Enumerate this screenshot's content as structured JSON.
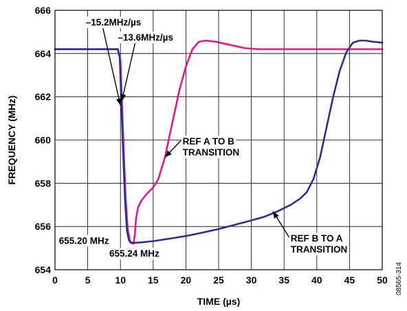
{
  "chart_data": {
    "type": "line",
    "xlabel": "TIME (µs)",
    "ylabel": "FREQUENCY (MHz)",
    "xlim": [
      0,
      50
    ],
    "ylim": [
      654,
      666
    ],
    "x_ticks": [
      "0",
      "5",
      "10",
      "15",
      "20",
      "25",
      "30",
      "35",
      "40",
      "45",
      "50"
    ],
    "y_ticks": [
      "654",
      "656",
      "658",
      "660",
      "662",
      "664",
      "666"
    ],
    "grid": true,
    "legend": "none",
    "figure_id": "08565-314",
    "series": [
      {
        "color": "#e0188c",
        "points": [
          [
            0,
            664.2
          ],
          [
            9.6,
            664.2
          ],
          [
            10.0,
            663.7
          ],
          [
            10.2,
            662.0
          ],
          [
            10.5,
            659.5
          ],
          [
            10.8,
            657.3
          ],
          [
            11.1,
            655.9
          ],
          [
            11.5,
            655.25
          ],
          [
            12.0,
            655.2
          ],
          [
            12.2,
            655.6
          ],
          [
            12.4,
            656.4
          ],
          [
            12.7,
            656.9
          ],
          [
            13.2,
            657.2
          ],
          [
            14.0,
            657.5
          ],
          [
            15.0,
            657.8
          ],
          [
            15.8,
            658.2
          ],
          [
            16.8,
            659.2
          ],
          [
            18.0,
            660.9
          ],
          [
            19.0,
            662.3
          ],
          [
            20.0,
            663.4
          ],
          [
            21.0,
            664.2
          ],
          [
            22.0,
            664.55
          ],
          [
            23.0,
            664.6
          ],
          [
            24.5,
            664.55
          ],
          [
            26.0,
            664.45
          ],
          [
            27.5,
            664.35
          ],
          [
            29.0,
            664.25
          ],
          [
            31.0,
            664.2
          ],
          [
            50,
            664.2
          ]
        ]
      },
      {
        "color": "#2b2f8f",
        "points": [
          [
            0,
            664.2
          ],
          [
            9.6,
            664.2
          ],
          [
            9.9,
            663.8
          ],
          [
            10.1,
            662.0
          ],
          [
            10.4,
            659.5
          ],
          [
            10.7,
            657.2
          ],
          [
            11.0,
            655.8
          ],
          [
            11.3,
            655.35
          ],
          [
            11.8,
            655.24
          ],
          [
            13,
            655.26
          ],
          [
            15,
            655.32
          ],
          [
            18,
            655.46
          ],
          [
            20,
            655.56
          ],
          [
            22,
            655.68
          ],
          [
            25,
            655.88
          ],
          [
            28,
            656.12
          ],
          [
            30,
            656.28
          ],
          [
            32,
            656.45
          ],
          [
            34,
            656.7
          ],
          [
            36,
            657.0
          ],
          [
            37.5,
            657.3
          ],
          [
            38.5,
            657.6
          ],
          [
            39.5,
            658.2
          ],
          [
            40.5,
            659.2
          ],
          [
            41.5,
            660.6
          ],
          [
            42.5,
            662.0
          ],
          [
            43.5,
            663.2
          ],
          [
            44.5,
            664.05
          ],
          [
            45.5,
            664.5
          ],
          [
            46.5,
            664.6
          ],
          [
            47.5,
            664.6
          ],
          [
            48.5,
            664.55
          ],
          [
            50,
            664.5
          ]
        ]
      }
    ],
    "annotations": [
      {
        "text": "–15.2MHz/µs",
        "x": 4.7,
        "y": 665.3,
        "arrow_to": [
          10.0,
          661.6
        ]
      },
      {
        "text": "–13.6MHz/µs",
        "x": 9.6,
        "y": 664.6,
        "arrow_to": [
          10.2,
          661.8
        ]
      },
      {
        "lines": [
          "REF A TO B",
          "TRANSITION"
        ],
        "x": 19.5,
        "y": 659.8,
        "arrow_to": [
          16.8,
          659.2
        ]
      },
      {
        "lines": [
          "REF B TO A",
          "TRANSITION"
        ],
        "x": 36.0,
        "y": 655.3,
        "arrow_to": [
          33.3,
          656.7
        ]
      },
      {
        "text": "655.20 MHz",
        "x": 0.6,
        "y": 655.2
      },
      {
        "text": "655.24 MHz",
        "x": 8.3,
        "y": 654.6
      }
    ]
  }
}
